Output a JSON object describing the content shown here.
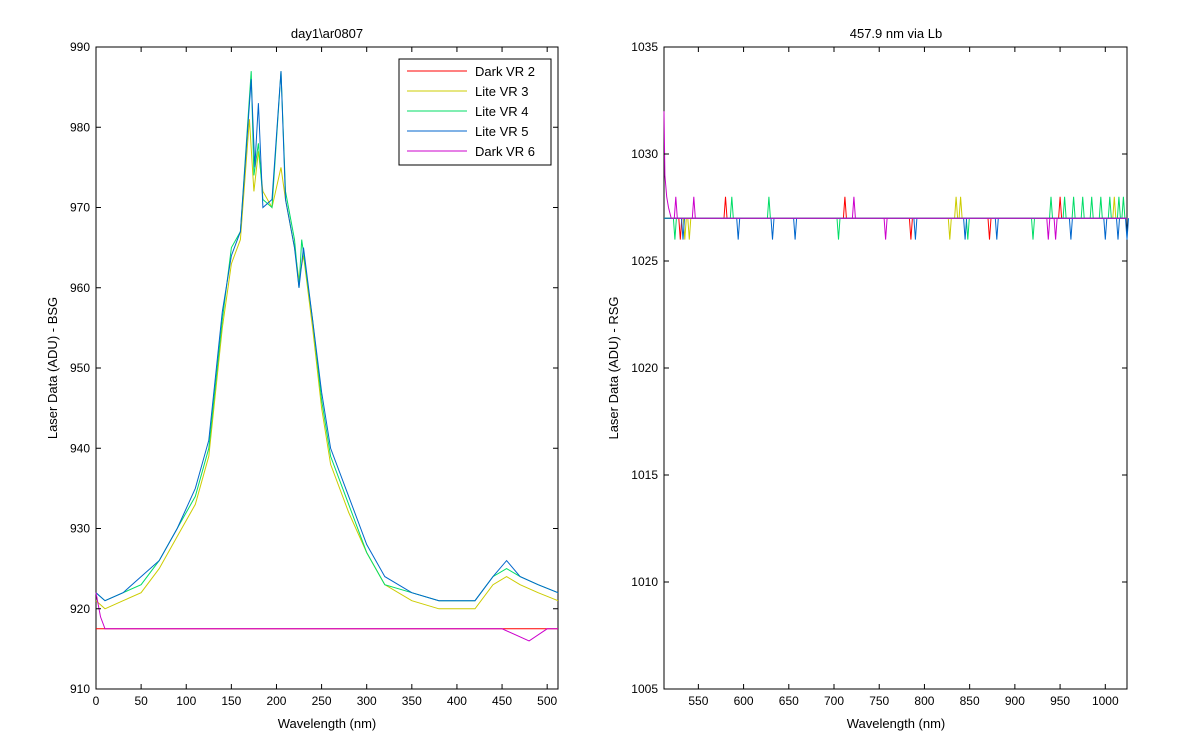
{
  "chart_data": [
    {
      "type": "line",
      "title": "day1\\ar0807",
      "xlabel": "Wavelength (nm)",
      "ylabel": "Laser Data (ADU) - BSG",
      "xlim": [
        0,
        512
      ],
      "ylim": [
        910,
        990
      ],
      "xticks": [
        0,
        50,
        100,
        150,
        200,
        250,
        300,
        350,
        400,
        450,
        500
      ],
      "yticks": [
        910,
        920,
        930,
        940,
        950,
        960,
        970,
        980,
        990
      ],
      "legend_position": "top-right",
      "grid": false,
      "series": [
        {
          "name": "Dark VR 2",
          "color": "#ff0000",
          "x": [
            0,
            50,
            100,
            150,
            200,
            250,
            300,
            350,
            400,
            450,
            500,
            512
          ],
          "y": [
            917.5,
            917.5,
            917.5,
            917.5,
            917.5,
            917.5,
            917.5,
            917.5,
            917.5,
            917.5,
            917.5,
            917.5
          ]
        },
        {
          "name": "Lite VR 3",
          "color": "#cccc00",
          "x": [
            0,
            10,
            30,
            50,
            70,
            90,
            110,
            125,
            140,
            150,
            160,
            170,
            175,
            180,
            185,
            195,
            205,
            210,
            220,
            225,
            230,
            240,
            250,
            260,
            280,
            300,
            320,
            350,
            380,
            420,
            440,
            455,
            470,
            490,
            512
          ],
          "y": [
            921,
            920,
            921,
            922,
            925,
            929,
            933,
            939,
            955,
            963,
            966,
            981,
            972,
            977,
            972,
            970,
            975,
            971,
            965,
            961,
            964,
            955,
            945,
            938,
            932,
            927,
            923,
            921,
            920,
            920,
            923,
            924,
            923,
            922,
            921
          ]
        },
        {
          "name": "Lite VR 4",
          "color": "#00dd66",
          "x": [
            0,
            10,
            30,
            50,
            70,
            90,
            110,
            125,
            140,
            150,
            160,
            172,
            175,
            180,
            185,
            195,
            205,
            210,
            220,
            225,
            228,
            240,
            250,
            260,
            280,
            300,
            320,
            350,
            380,
            420,
            440,
            455,
            470,
            490,
            512
          ],
          "y": [
            922,
            921,
            922,
            923,
            926,
            930,
            934,
            940,
            956,
            965,
            967,
            987,
            974,
            978,
            971,
            970,
            987,
            972,
            966,
            960,
            966,
            956,
            946,
            939,
            933,
            927,
            923,
            922,
            921,
            921,
            924,
            925,
            924,
            923,
            922
          ]
        },
        {
          "name": "Lite VR 5",
          "color": "#0066cc",
          "x": [
            0,
            10,
            30,
            50,
            70,
            90,
            110,
            125,
            140,
            150,
            160,
            172,
            176,
            180,
            185,
            195,
            205,
            210,
            220,
            225,
            230,
            240,
            250,
            260,
            280,
            300,
            320,
            350,
            380,
            420,
            440,
            455,
            470,
            490,
            512
          ],
          "y": [
            922,
            921,
            922,
            924,
            926,
            930,
            935,
            941,
            957,
            964,
            967,
            986,
            975,
            983,
            970,
            971,
            987,
            971,
            965,
            960,
            965,
            956,
            947,
            940,
            934,
            928,
            924,
            922,
            921,
            921,
            924,
            926,
            924,
            923,
            922
          ]
        },
        {
          "name": "Dark VR 6",
          "color": "#cc00cc",
          "x": [
            0,
            5,
            10,
            50,
            100,
            150,
            200,
            250,
            300,
            350,
            400,
            450,
            480,
            500,
            512
          ],
          "y": [
            922,
            919,
            917.5,
            917.5,
            917.5,
            917.5,
            917.5,
            917.5,
            917.5,
            917.5,
            917.5,
            917.5,
            916,
            917.5,
            917.5
          ]
        }
      ]
    },
    {
      "type": "line",
      "title": "457.9 nm via Lb",
      "xlabel": "Wavelength (nm)",
      "ylabel": "Laser Data (ADU) - RSG",
      "xlim": [
        512,
        1024
      ],
      "ylim": [
        1005,
        1035
      ],
      "xticks": [
        550,
        600,
        650,
        700,
        750,
        800,
        850,
        900,
        950,
        1000
      ],
      "yticks": [
        1005,
        1010,
        1015,
        1020,
        1025,
        1030,
        1035
      ],
      "grid": false,
      "series": [
        {
          "color": "#ff0000",
          "x": [
            512,
            1024
          ],
          "y": [
            1027,
            1027
          ],
          "spikes": [
            [
              530,
              1026
            ],
            [
              580,
              1028
            ],
            [
              712,
              1028
            ],
            [
              785,
              1026
            ],
            [
              872,
              1026
            ],
            [
              950,
              1028
            ]
          ]
        },
        {
          "color": "#cccc00",
          "x": [
            512,
            1024
          ],
          "y": [
            1027,
            1027
          ],
          "spikes": [
            [
              535,
              1026
            ],
            [
              540,
              1026
            ],
            [
              828,
              1026
            ],
            [
              835,
              1028
            ],
            [
              840,
              1028
            ],
            [
              1010,
              1028
            ]
          ]
        },
        {
          "color": "#00dd66",
          "x": [
            512,
            1024
          ],
          "y": [
            1027,
            1027
          ],
          "spikes": [
            [
              524,
              1026
            ],
            [
              587,
              1028
            ],
            [
              628,
              1028
            ],
            [
              705,
              1026
            ],
            [
              848,
              1026
            ],
            [
              920,
              1026
            ],
            [
              940,
              1028
            ],
            [
              955,
              1028
            ],
            [
              965,
              1028
            ],
            [
              975,
              1028
            ],
            [
              985,
              1028
            ],
            [
              995,
              1028
            ],
            [
              1005,
              1028
            ],
            [
              1015,
              1028
            ],
            [
              1020,
              1028
            ]
          ]
        },
        {
          "color": "#0066cc",
          "x": [
            512,
            1024
          ],
          "y": [
            1027,
            1027
          ],
          "spikes": [
            [
              533,
              1026
            ],
            [
              594,
              1026
            ],
            [
              632,
              1026
            ],
            [
              657,
              1026
            ],
            [
              790,
              1026
            ],
            [
              845,
              1026
            ],
            [
              880,
              1026
            ],
            [
              962,
              1026
            ],
            [
              1000,
              1026
            ],
            [
              1014,
              1026
            ],
            [
              1024,
              1026
            ]
          ]
        },
        {
          "color": "#cc00cc",
          "x": [
            512,
            513,
            515,
            517,
            520,
            1024
          ],
          "y": [
            1032,
            1029,
            1028,
            1027.5,
            1027,
            1027
          ],
          "spikes": [
            [
              525,
              1028
            ],
            [
              545,
              1028
            ],
            [
              722,
              1028
            ],
            [
              757,
              1026
            ],
            [
              937,
              1026
            ],
            [
              945,
              1026
            ]
          ]
        }
      ]
    }
  ]
}
